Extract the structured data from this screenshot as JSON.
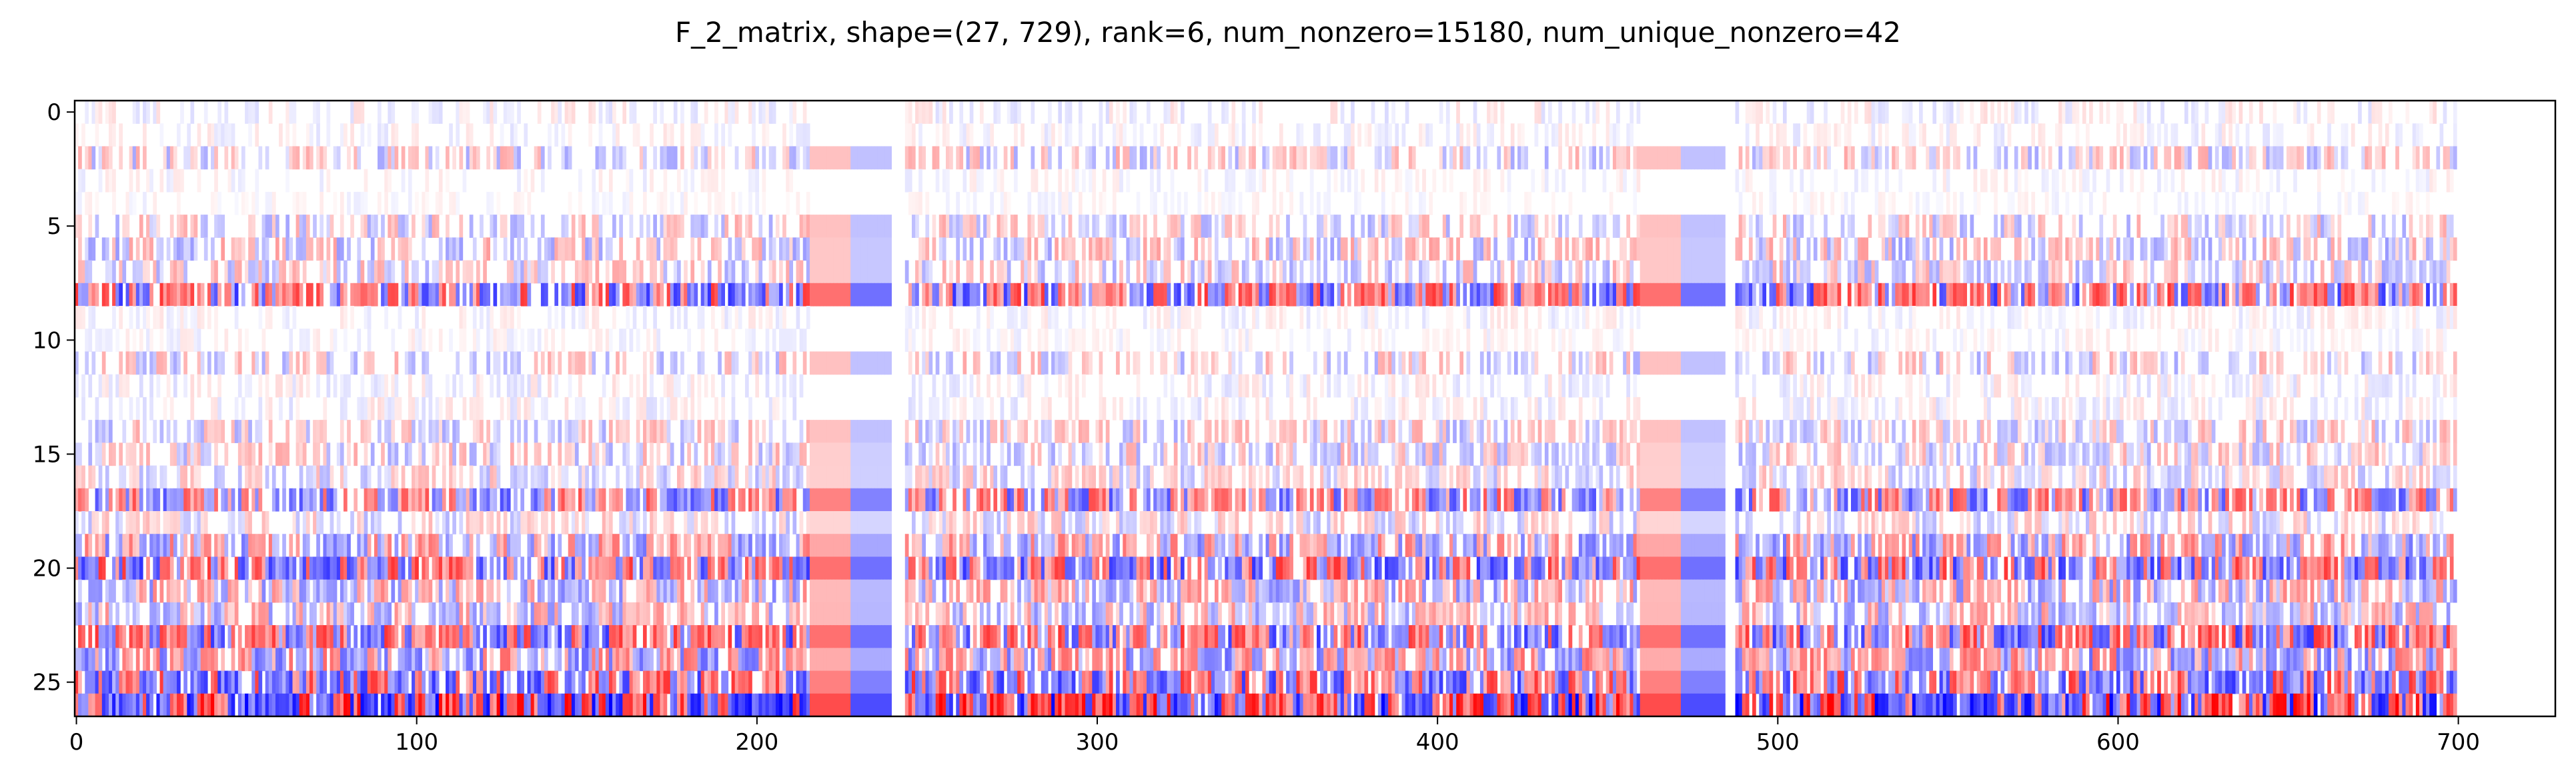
{
  "chart_data": {
    "type": "heatmap",
    "title": "F_2_matrix, shape=(27, 729), rank=6, num_nonzero=15180, num_unique_nonzero=42",
    "shape": [
      27,
      729
    ],
    "rank": 6,
    "num_nonzero": 15180,
    "num_unique_nonzero": 42,
    "colormap": "bwr",
    "color_low": "#0000ff",
    "color_mid": "#ffffff",
    "color_high": "#ff0000",
    "xlim": [
      0,
      729
    ],
    "ylim": [
      27,
      0
    ],
    "x_ticks": [
      0,
      100,
      200,
      300,
      400,
      500,
      600,
      700
    ],
    "x_tick_labels": [
      "0",
      "100",
      "200",
      "300",
      "400",
      "500",
      "600",
      "700"
    ],
    "y_ticks": [
      0,
      5,
      10,
      15,
      20,
      25
    ],
    "y_tick_labels": [
      "0",
      "5",
      "10",
      "15",
      "20",
      "25"
    ],
    "nonzero_column_range": [
      0,
      700
    ],
    "blank_column_ranges": [
      [
        240,
        243
      ],
      [
        485,
        487
      ]
    ],
    "wide_block_column_ranges": [
      [
        216,
        239
      ],
      [
        460,
        484
      ]
    ],
    "grid": false,
    "legend": "none",
    "row_intensity": [
      0.15,
      0.12,
      0.35,
      0.1,
      0.08,
      0.35,
      0.4,
      0.35,
      0.8,
      0.12,
      0.1,
      0.35,
      0.15,
      0.15,
      0.35,
      0.35,
      0.3,
      0.7,
      0.3,
      0.55,
      0.8,
      0.5,
      0.45,
      0.8,
      0.6,
      0.8,
      1.0
    ],
    "row_density": [
      0.4,
      0.4,
      0.55,
      0.35,
      0.35,
      0.5,
      0.55,
      0.6,
      0.85,
      0.4,
      0.4,
      0.5,
      0.45,
      0.45,
      0.55,
      0.6,
      0.6,
      0.8,
      0.55,
      0.75,
      0.85,
      0.75,
      0.7,
      0.85,
      0.8,
      0.85,
      0.95
    ]
  }
}
